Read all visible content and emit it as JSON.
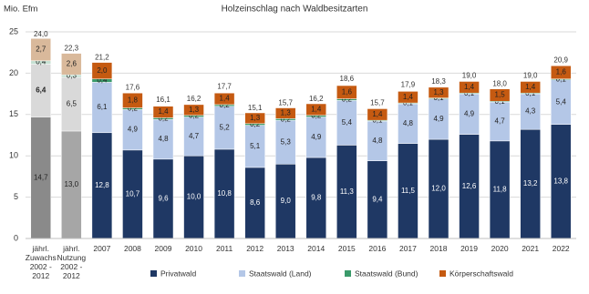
{
  "chart_data": {
    "type": "stacked-bar",
    "title": "Holzeinschlag nach Waldbesitzarten",
    "ylabel": "Mio. Efm",
    "categories": [
      "jährl. Zuwachs 2002 - 2012",
      "jährl. Nutzung 2002 - 2012",
      "2007",
      "2008",
      "2009",
      "2010",
      "2011",
      "2012",
      "2013",
      "2014",
      "2015",
      "2016",
      "2017",
      "2018",
      "2019",
      "2020",
      "2021",
      "2022"
    ],
    "ylim": [
      0,
      25
    ],
    "yticks": [
      0,
      5,
      10,
      15,
      20,
      25
    ],
    "grid": true,
    "legend": "bottom",
    "series": [
      {
        "name": "Privatwald",
        "color": "#1f3864",
        "colors": [
          "#8a8a8a",
          "#a6a6a6",
          "#1f3864",
          "#1f3864",
          "#1f3864",
          "#1f3864",
          "#1f3864",
          "#1f3864",
          "#1f3864",
          "#1f3864",
          "#1f3864",
          "#1f3864",
          "#1f3864",
          "#1f3864",
          "#1f3864",
          "#1f3864",
          "#1f3864",
          "#1f3864"
        ],
        "values": [
          14.7,
          13.0,
          12.8,
          10.7,
          9.6,
          10.0,
          10.8,
          8.6,
          9.0,
          9.8,
          11.3,
          9.4,
          11.5,
          12.0,
          12.6,
          11.8,
          13.2,
          13.8
        ],
        "value_labels": [
          "14,7",
          "13,0",
          "12,8",
          "10,7",
          "9,6",
          "10,0",
          "10,8",
          "8,6",
          "9,0",
          "9,8",
          "11,3",
          "9,4",
          "11,5",
          "12,0",
          "12,6",
          "11,8",
          "13,2",
          "13,8"
        ]
      },
      {
        "name": "Staatswald (Land)",
        "color": "#b4c7e7",
        "colors": [
          "#d9d9d9",
          "#d9d9d9",
          "#b4c7e7",
          "#b4c7e7",
          "#b4c7e7",
          "#b4c7e7",
          "#b4c7e7",
          "#b4c7e7",
          "#b4c7e7",
          "#b4c7e7",
          "#b4c7e7",
          "#b4c7e7",
          "#b4c7e7",
          "#b4c7e7",
          "#b4c7e7",
          "#b4c7e7",
          "#b4c7e7",
          "#b4c7e7"
        ],
        "values": [
          6.4,
          6.5,
          6.1,
          4.9,
          4.8,
          4.7,
          5.2,
          5.1,
          5.3,
          4.9,
          5.4,
          4.8,
          4.8,
          4.9,
          4.9,
          4.7,
          4.3,
          5.4
        ],
        "value_labels": [
          "6,4",
          "6,5",
          "6,1",
          "4,9",
          "4,8",
          "4,7",
          "5,2",
          "5,1",
          "5,3",
          "4,9",
          "5,4",
          "4,8",
          "4,8",
          "4,9",
          "4,9",
          "4,7",
          "4,3",
          "5,4"
        ]
      },
      {
        "name": "Staatswald (Bund)",
        "color": "#3a9a6a",
        "colors": [
          "#c5e0d2",
          "#c5e0d2",
          "#3a9a6a",
          "#3a9a6a",
          "#3a9a6a",
          "#3a9a6a",
          "#3a9a6a",
          "#3a9a6a",
          "#3a9a6a",
          "#3a9a6a",
          "#3a9a6a",
          "#3a9a6a",
          "#3a9a6a",
          "#3a9a6a",
          "#3a9a6a",
          "#3a9a6a",
          "#3a9a6a",
          "#3a9a6a"
        ],
        "values": [
          0.4,
          0.3,
          0.4,
          0.2,
          0.2,
          0.2,
          0.2,
          0.2,
          0.2,
          0.2,
          0.2,
          0.1,
          0.1,
          0.1,
          0.1,
          0.1,
          0.1,
          0.1
        ],
        "value_labels": [
          "0,4",
          "0,3",
          "0,4",
          "0,2",
          "0,2",
          "0,2",
          "0,2",
          "0,2",
          "0,2",
          "0,2",
          "0,2",
          "0,1",
          "0,1",
          "0,1",
          "0,1",
          "0,1",
          "0,1",
          "0,1"
        ]
      },
      {
        "name": "Körperschaftswald",
        "color": "#c55a11",
        "colors": [
          "#d9b99b",
          "#d9b99b",
          "#c55a11",
          "#c55a11",
          "#c55a11",
          "#c55a11",
          "#c55a11",
          "#c55a11",
          "#c55a11",
          "#c55a11",
          "#c55a11",
          "#c55a11",
          "#c55a11",
          "#c55a11",
          "#c55a11",
          "#c55a11",
          "#c55a11",
          "#c55a11"
        ],
        "values": [
          2.7,
          2.6,
          2.0,
          1.8,
          1.4,
          1.3,
          1.4,
          1.3,
          1.3,
          1.4,
          1.6,
          1.4,
          1.4,
          1.3,
          1.4,
          1.5,
          1.4,
          1.6
        ],
        "value_labels": [
          "2,7",
          "2,6",
          "2,0",
          "1,8",
          "1,4",
          "1,3",
          "1,4",
          "1,3",
          "1,3",
          "1,4",
          "1,6",
          "1,4",
          "1,4",
          "1,3",
          "1,4",
          "1,5",
          "1,4",
          "1,6"
        ]
      }
    ],
    "totals": {
      "values": [
        24.0,
        22.3,
        21.2,
        17.6,
        16.1,
        16.2,
        17.7,
        15.1,
        15.7,
        16.2,
        18.6,
        15.7,
        17.9,
        18.3,
        19.0,
        18.0,
        19.0,
        20.9
      ],
      "value_labels": [
        "24,0",
        "22,3",
        "21,2",
        "17,6",
        "16,1",
        "16,2",
        "17,7",
        "15,1",
        "15,7",
        "16,2",
        "18,6",
        "15,7",
        "17,9",
        "18,3",
        "19,0",
        "18,0",
        "19,0",
        "20,9"
      ]
    }
  }
}
